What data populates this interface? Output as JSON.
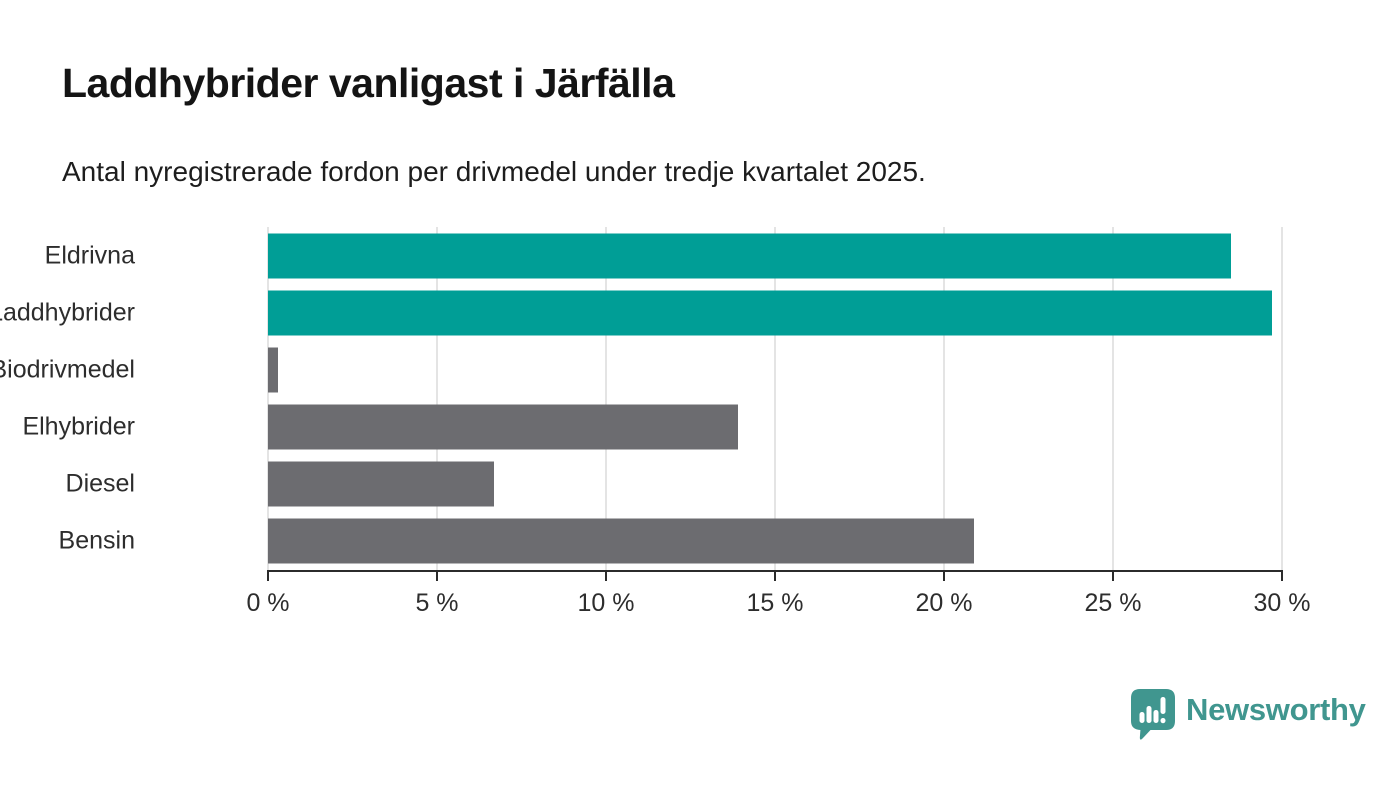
{
  "header": {
    "title": "Laddhybrider vanligast i Järfälla",
    "subtitle": "Antal nyregistrerade fordon per drivmedel under tredje kvartalet 2025."
  },
  "chart_data": {
    "type": "bar",
    "orientation": "horizontal",
    "title": "Laddhybrider vanligast i Järfälla",
    "subtitle": "Antal nyregistrerade fordon per drivmedel under tredje kvartalet 2025.",
    "categories": [
      "Eldrivna",
      "Laddhybrider",
      "Biodrivmedel",
      "Elhybrider",
      "Diesel",
      "Bensin"
    ],
    "values": [
      28.5,
      29.7,
      0.3,
      13.9,
      6.7,
      20.9
    ],
    "unit": "%",
    "xlim": [
      0,
      30
    ],
    "x_ticks": [
      0,
      5,
      10,
      15,
      20,
      25,
      30
    ],
    "x_tick_labels": [
      "0 %",
      "5 %",
      "10 %",
      "15 %",
      "20 %",
      "25 %",
      "30 %"
    ],
    "highlighted_categories": [
      "Eldrivna",
      "Laddhybrider"
    ],
    "bar_colors": [
      "#009e96",
      "#009e96",
      "#6c6c70",
      "#6c6c70",
      "#6c6c70",
      "#6c6c70"
    ],
    "colors": {
      "highlight": "#009e96",
      "default": "#6c6c70",
      "gridline": "#e4e4e4",
      "axis": "#2b2b2b",
      "tick_text": "#2d2d2d"
    },
    "grid": true,
    "legend": false
  },
  "footer": {
    "brand": "Newsworthy",
    "brand_color": "#40968f",
    "logo_icon": "bar-chart-speech-bubble-icon"
  }
}
